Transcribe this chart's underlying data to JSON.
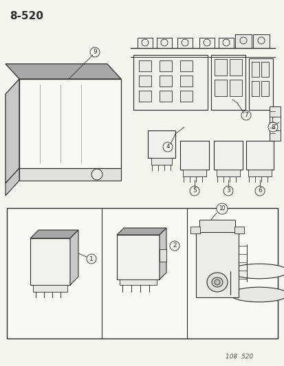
{
  "title": "8-520",
  "footer": "108  520",
  "bg": "#f5f5f0",
  "lc": "#2a2a2a",
  "gray_light": "#c8c8c8",
  "gray_mid": "#a8a8a8",
  "gray_dark": "#888888",
  "panel_bg": "#f0f0eb",
  "fig_w": 4.14,
  "fig_h": 5.33,
  "dpi": 100
}
